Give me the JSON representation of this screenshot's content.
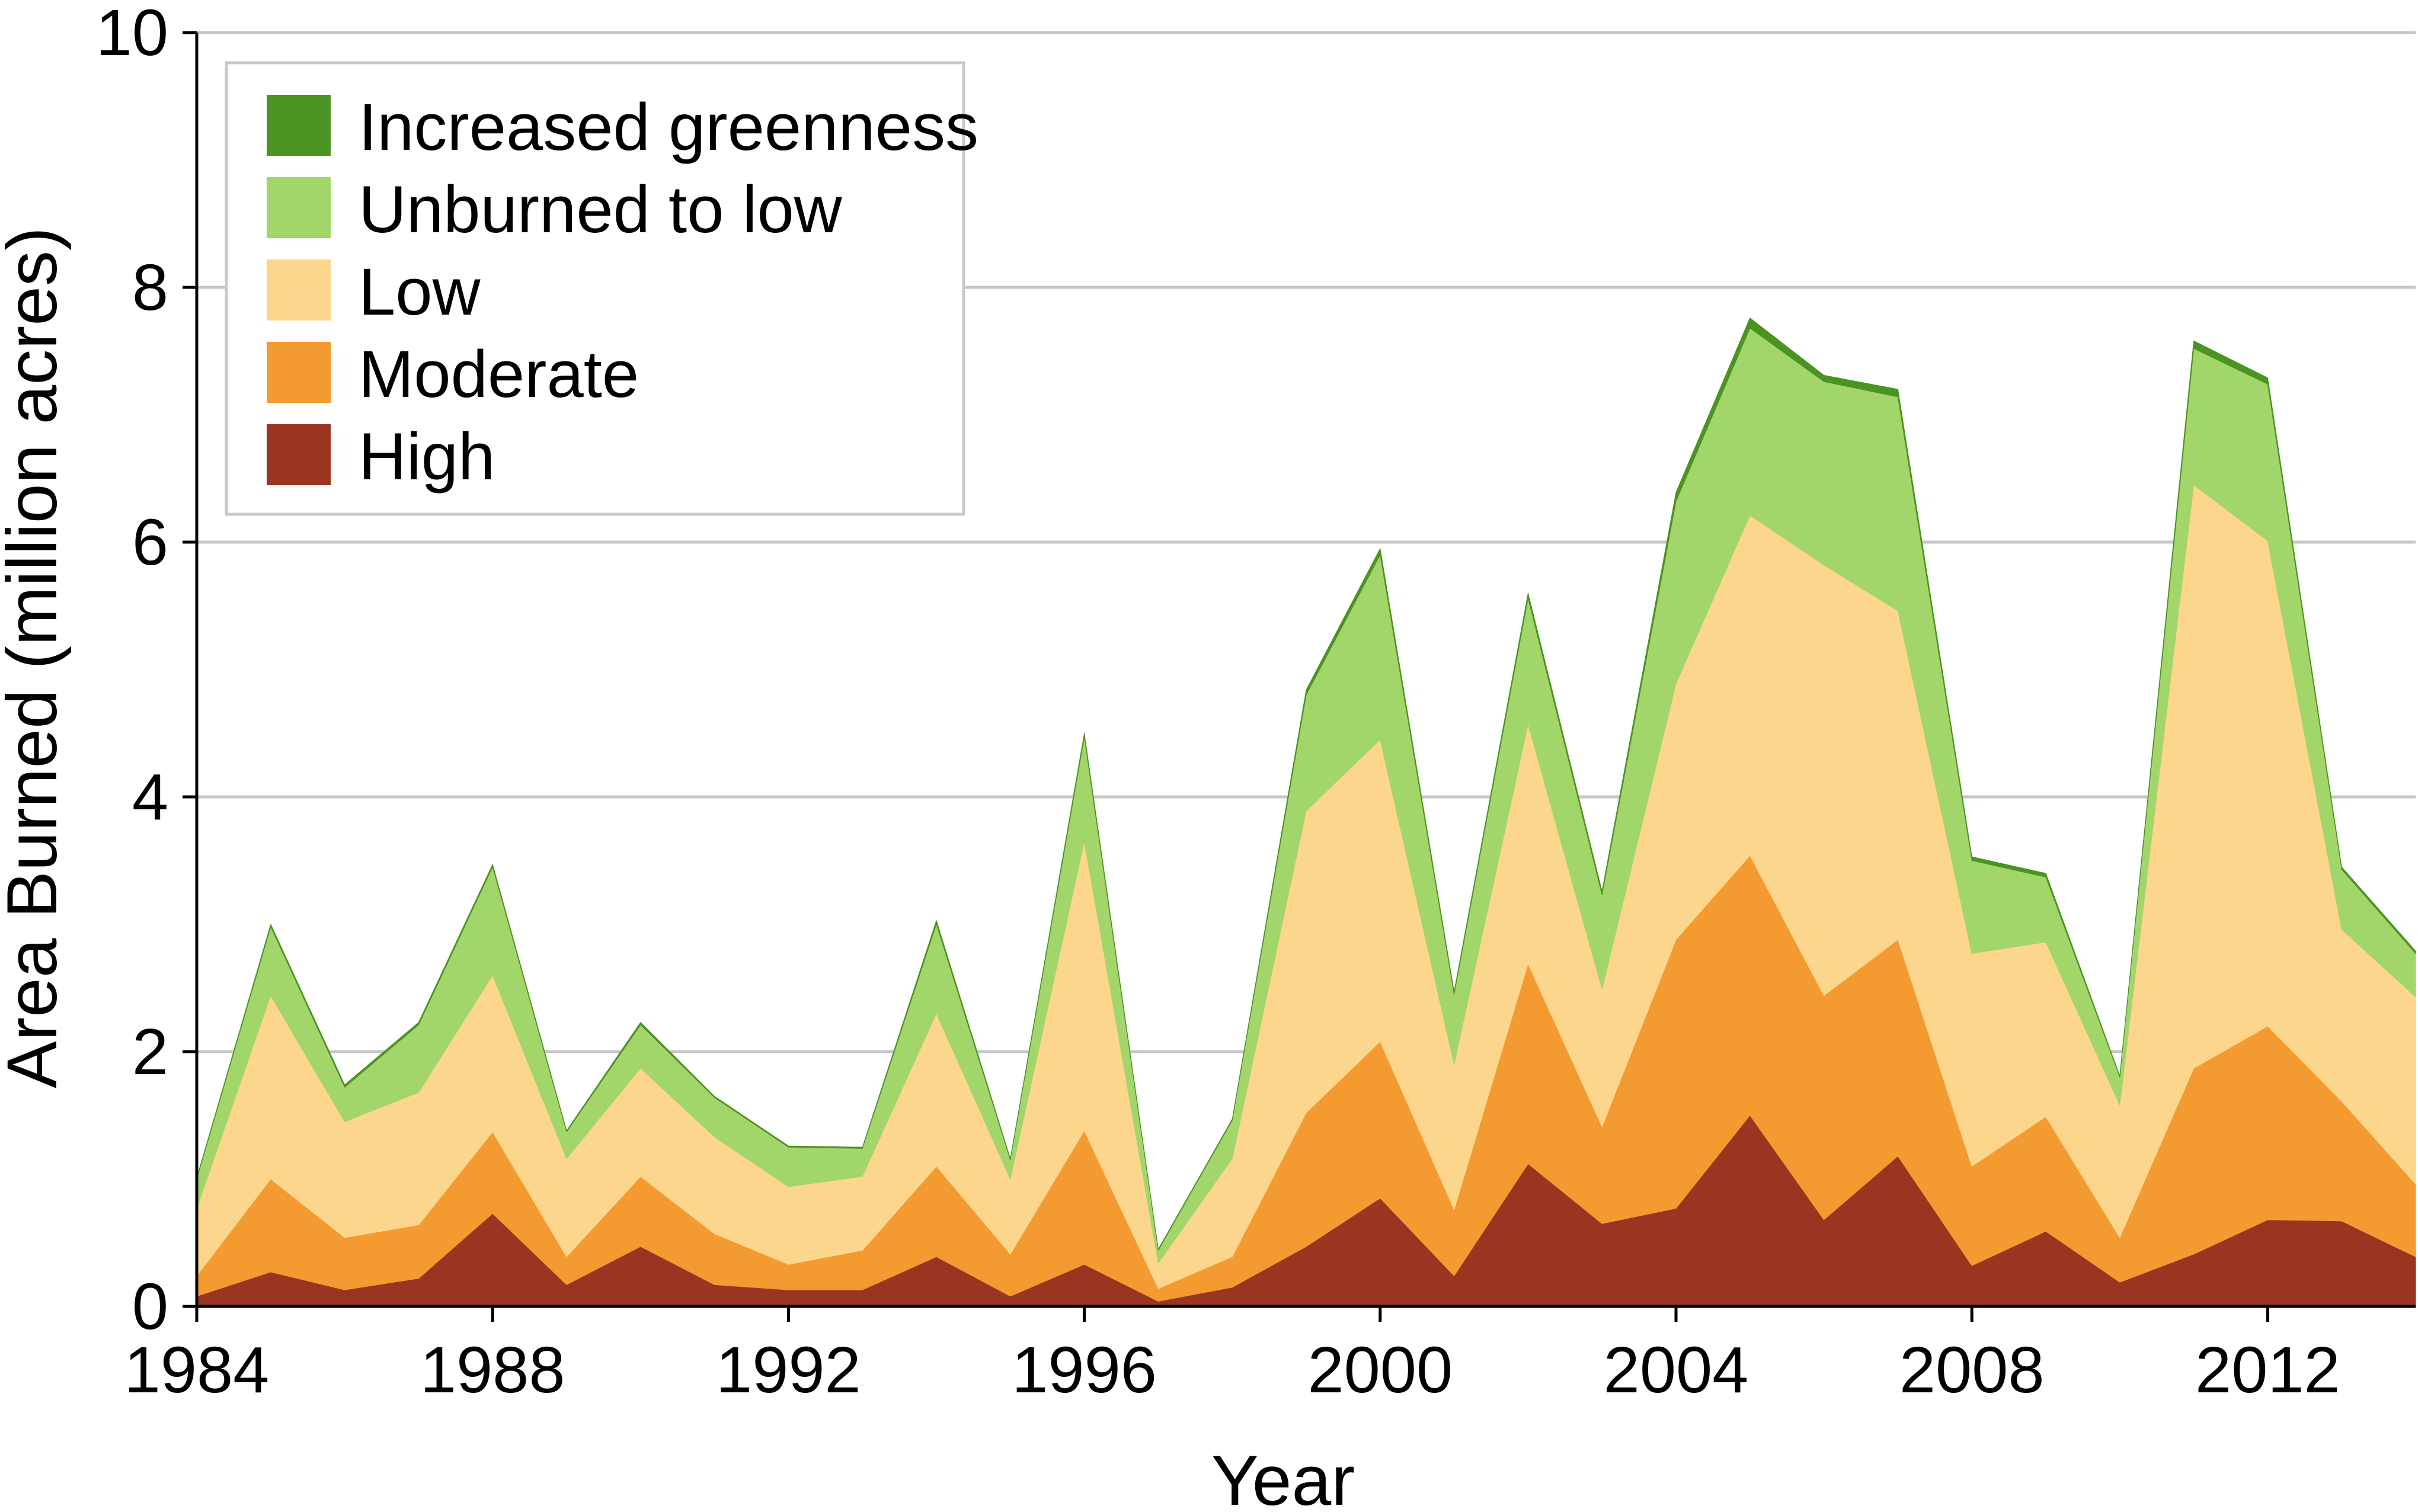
{
  "chart_data": {
    "type": "area",
    "stacked": true,
    "title": "",
    "xlabel": "Year",
    "ylabel": "Area Burned (million acres)",
    "xlim": [
      1984,
      2014
    ],
    "ylim": [
      0,
      10
    ],
    "x_ticks": [
      1984,
      1988,
      1992,
      1996,
      2000,
      2004,
      2008,
      2012
    ],
    "y_ticks": [
      0,
      2,
      4,
      6,
      8,
      10
    ],
    "grid": "horizontal",
    "legend_position": "top-left",
    "x": [
      1984,
      1985,
      1986,
      1987,
      1988,
      1989,
      1990,
      1991,
      1992,
      1993,
      1994,
      1995,
      1996,
      1997,
      1998,
      1999,
      2000,
      2001,
      2002,
      2003,
      2004,
      2005,
      2006,
      2007,
      2008,
      2009,
      2010,
      2011,
      2012,
      2013,
      2014
    ],
    "series": [
      {
        "name": "High",
        "color": "#993520",
        "values": [
          0.08,
          0.27,
          0.13,
          0.22,
          0.73,
          0.17,
          0.47,
          0.17,
          0.13,
          0.13,
          0.39,
          0.08,
          0.33,
          0.04,
          0.15,
          0.47,
          0.85,
          0.24,
          1.12,
          0.65,
          0.77,
          1.5,
          0.68,
          1.18,
          0.32,
          0.59,
          0.19,
          0.41,
          0.68,
          0.67,
          0.39
        ]
      },
      {
        "name": "Moderate",
        "color": "#f39a30",
        "values": [
          0.16,
          0.73,
          0.41,
          0.42,
          0.64,
          0.22,
          0.55,
          0.4,
          0.2,
          0.31,
          0.71,
          0.33,
          1.05,
          0.1,
          0.24,
          1.05,
          1.23,
          0.52,
          1.57,
          0.76,
          2.11,
          2.04,
          1.76,
          1.7,
          0.78,
          0.9,
          0.35,
          1.46,
          1.52,
          0.94,
          0.57
        ]
      },
      {
        "name": "Low",
        "color": "#fcd68d",
        "values": [
          0.53,
          1.44,
          0.91,
          1.04,
          1.23,
          0.77,
          0.85,
          0.76,
          0.61,
          0.58,
          1.2,
          0.59,
          2.27,
          0.2,
          0.77,
          2.37,
          2.37,
          1.14,
          1.88,
          1.08,
          2.01,
          2.67,
          3.38,
          2.58,
          1.67,
          1.37,
          1.04,
          4.58,
          3.81,
          1.35,
          1.47
        ]
      },
      {
        "name": "Unburned to low",
        "color": "#a2d66b",
        "values": [
          0.23,
          0.54,
          0.27,
          0.53,
          0.85,
          0.21,
          0.34,
          0.31,
          0.31,
          0.22,
          0.7,
          0.15,
          0.82,
          0.1,
          0.3,
          0.91,
          1.45,
          0.55,
          0.99,
          0.74,
          1.43,
          1.47,
          1.44,
          1.68,
          0.73,
          0.51,
          0.22,
          1.07,
          1.23,
          0.47,
          0.34
        ]
      },
      {
        "name": "Increased greenness",
        "color": "#4b9322",
        "values": [
          0.01,
          0.02,
          0.02,
          0.02,
          0.02,
          0.01,
          0.02,
          0.01,
          0.01,
          0.01,
          0.03,
          0.01,
          0.03,
          0.01,
          0.01,
          0.04,
          0.05,
          0.02,
          0.04,
          0.03,
          0.07,
          0.08,
          0.05,
          0.06,
          0.03,
          0.03,
          0.01,
          0.06,
          0.05,
          0.02,
          0.02
        ]
      }
    ],
    "legend_order": [
      "Increased greenness",
      "Unburned to low",
      "Low",
      "Moderate",
      "High"
    ]
  }
}
